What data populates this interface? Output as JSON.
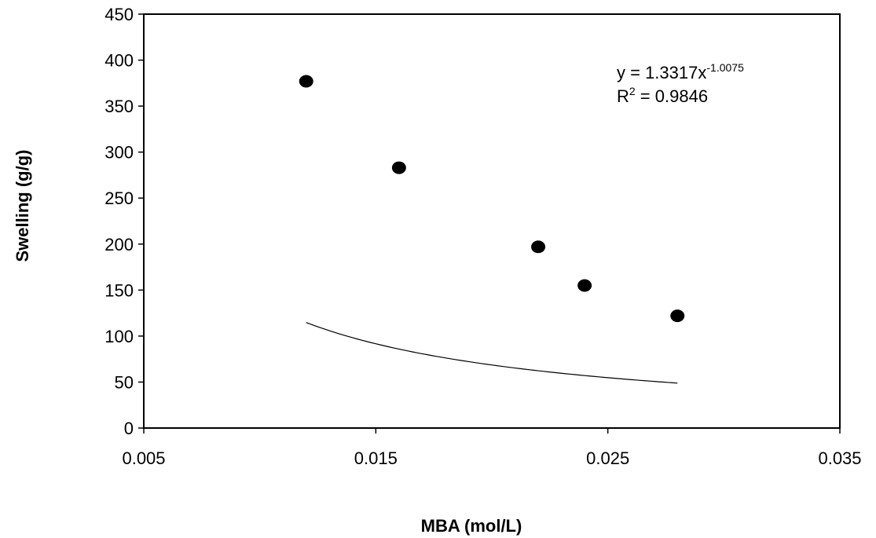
{
  "chart_data": {
    "type": "scatter",
    "title": "",
    "xlabel": "MBA (mol/L)",
    "ylabel": "Swelling (g/g)",
    "xlim": [
      0.005,
      0.035
    ],
    "ylim": [
      0,
      450
    ],
    "xticks": [
      0.005,
      0.015,
      0.025,
      0.035
    ],
    "xtick_labels": [
      "0.005",
      "0.015",
      "0.025",
      "0.035"
    ],
    "yticks": [
      0,
      50,
      100,
      150,
      200,
      250,
      300,
      350,
      400,
      450
    ],
    "ytick_labels": [
      "0",
      "50",
      "100",
      "150",
      "200",
      "250",
      "300",
      "350",
      "400",
      "450"
    ],
    "grid": false,
    "legend": false,
    "series": [
      {
        "x": [
          0.012,
          0.016,
          0.022,
          0.024,
          0.028
        ],
        "y": [
          377,
          283,
          197,
          155,
          122
        ],
        "marker": "circle",
        "color": "#000000"
      }
    ],
    "trendline": {
      "type": "power",
      "coefficient": 1.3317,
      "exponent": -1.0075,
      "x_range": [
        0.012,
        0.028
      ],
      "color": "#000000"
    },
    "annotations": {
      "equation_main": "y = 1.3317x",
      "equation_exponent": "-1.0075",
      "r2_prefix": "R",
      "r2_sup": "2",
      "r2_value": " = 0.9846"
    }
  }
}
